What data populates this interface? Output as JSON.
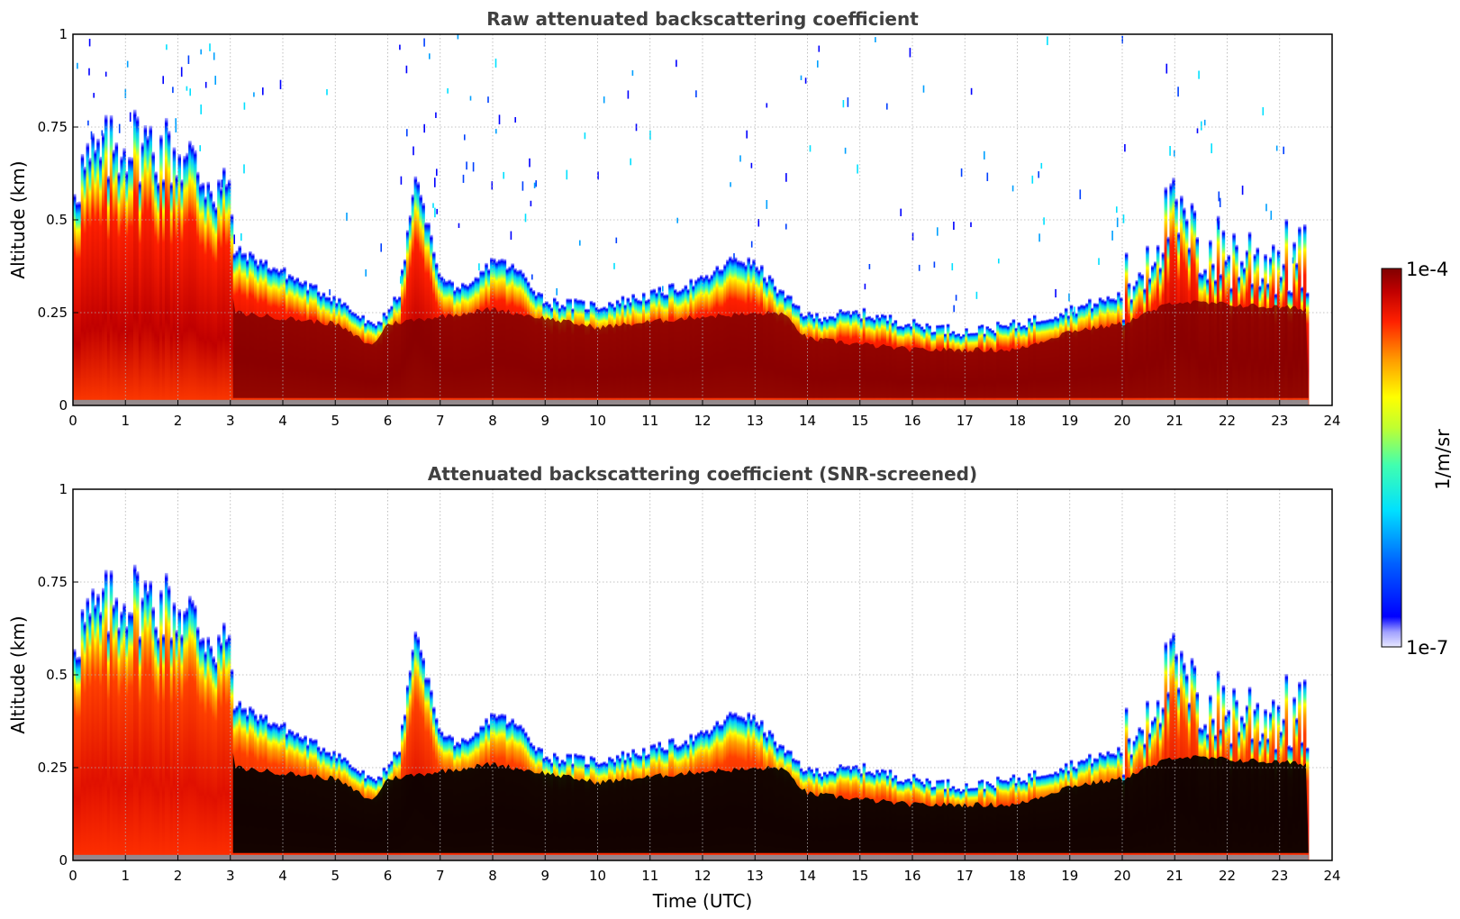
{
  "chart_data": [
    {
      "type": "heatmap",
      "title": "Raw attenuated backscattering coefficient",
      "xlabel": "",
      "ylabel": "Altitude (km)",
      "xlim": [
        0,
        24
      ],
      "ylim": [
        0,
        1
      ],
      "xticks": [
        "0",
        "1",
        "2",
        "3",
        "4",
        "5",
        "6",
        "7",
        "8",
        "9",
        "10",
        "11",
        "12",
        "13",
        "14",
        "15",
        "16",
        "17",
        "18",
        "19",
        "20",
        "21",
        "22",
        "23",
        "24"
      ],
      "yticks": [
        "0",
        "0.25",
        "0.5",
        "0.75",
        "1"
      ],
      "grid": true,
      "data_end_time": 23.55,
      "screening": "raw",
      "layer_top_km": {
        "t": [
          0,
          1,
          2,
          2.9,
          3.1,
          4,
          4.5,
          5,
          5.7,
          6.2,
          6.5,
          7,
          7.5,
          8,
          8.5,
          9,
          10,
          11,
          12,
          12.6,
          13,
          13.5,
          14,
          15,
          16,
          17,
          18,
          19,
          20,
          20.9,
          21.5,
          22,
          22.5,
          23,
          23.55
        ],
        "top": [
          0.62,
          0.72,
          0.68,
          0.58,
          0.42,
          0.36,
          0.32,
          0.29,
          0.21,
          0.3,
          0.62,
          0.34,
          0.31,
          0.4,
          0.36,
          0.28,
          0.27,
          0.3,
          0.34,
          0.4,
          0.38,
          0.3,
          0.24,
          0.25,
          0.22,
          0.2,
          0.22,
          0.26,
          0.3,
          0.52,
          0.42,
          0.41,
          0.4,
          0.4,
          0.38
        ]
      },
      "core_top_km": {
        "t": [
          0,
          3,
          3.1,
          5,
          5.7,
          6,
          8,
          10,
          12,
          13.5,
          14,
          16,
          18,
          19,
          20,
          21,
          23.55
        ],
        "top": [
          0.32,
          0.32,
          0.25,
          0.22,
          0.16,
          0.22,
          0.26,
          0.21,
          0.24,
          0.25,
          0.18,
          0.15,
          0.15,
          0.2,
          0.22,
          0.28,
          0.26
        ]
      }
    },
    {
      "type": "heatmap",
      "title": "Attenuated backscattering coefficient (SNR-screened)",
      "xlabel": "Time (UTC)",
      "ylabel": "Altitude (km)",
      "xlim": [
        0,
        24
      ],
      "ylim": [
        0,
        1
      ],
      "xticks": [
        "0",
        "1",
        "2",
        "3",
        "4",
        "5",
        "6",
        "7",
        "8",
        "9",
        "10",
        "11",
        "12",
        "13",
        "14",
        "15",
        "16",
        "17",
        "18",
        "19",
        "20",
        "21",
        "22",
        "23",
        "24"
      ],
      "yticks": [
        "0",
        "0.25",
        "0.5",
        "0.75",
        "1"
      ],
      "grid": true,
      "data_end_time": 23.55,
      "screening": "snr",
      "layer_top_km": {
        "t": [
          0,
          1,
          2,
          2.9,
          3.1,
          4,
          4.5,
          5,
          5.7,
          6.2,
          6.5,
          7,
          7.5,
          8,
          8.5,
          9,
          10,
          11,
          12,
          12.6,
          13,
          13.5,
          14,
          15,
          16,
          17,
          18,
          19,
          20,
          20.9,
          21.5,
          22,
          22.5,
          23,
          23.55
        ],
        "top": [
          0.62,
          0.72,
          0.68,
          0.58,
          0.42,
          0.36,
          0.32,
          0.29,
          0.21,
          0.3,
          0.62,
          0.34,
          0.31,
          0.4,
          0.36,
          0.28,
          0.27,
          0.3,
          0.34,
          0.4,
          0.38,
          0.3,
          0.24,
          0.25,
          0.22,
          0.2,
          0.22,
          0.26,
          0.3,
          0.52,
          0.42,
          0.41,
          0.4,
          0.4,
          0.38
        ]
      },
      "core_top_km": {
        "t": [
          0,
          3,
          3.1,
          5,
          5.7,
          6,
          8,
          10,
          12,
          13.5,
          14,
          16,
          18,
          19,
          20,
          21,
          23.55
        ],
        "top": [
          0.32,
          0.32,
          0.25,
          0.22,
          0.16,
          0.22,
          0.26,
          0.21,
          0.24,
          0.25,
          0.18,
          0.15,
          0.15,
          0.2,
          0.22,
          0.28,
          0.26
        ]
      }
    }
  ],
  "colorbar": {
    "label": "1/m/sr",
    "max_label": "1e-4",
    "min_label": "1e-7",
    "colormap": "jet",
    "scale": "log",
    "range": [
      1e-07,
      0.0001
    ]
  }
}
